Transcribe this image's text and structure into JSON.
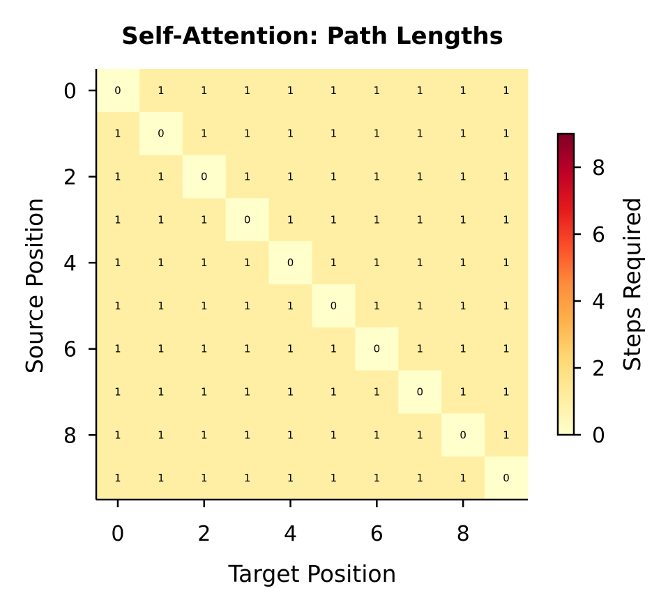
{
  "chart_data": {
    "type": "heatmap",
    "title": "Self-Attention: Path Lengths",
    "xlabel": "Target Position",
    "ylabel": "Source Position",
    "x_ticks": [
      0,
      2,
      4,
      6,
      8
    ],
    "y_ticks": [
      0,
      2,
      4,
      6,
      8
    ],
    "rows": 10,
    "cols": 10,
    "values": [
      [
        0,
        1,
        1,
        1,
        1,
        1,
        1,
        1,
        1,
        1
      ],
      [
        1,
        0,
        1,
        1,
        1,
        1,
        1,
        1,
        1,
        1
      ],
      [
        1,
        1,
        0,
        1,
        1,
        1,
        1,
        1,
        1,
        1
      ],
      [
        1,
        1,
        1,
        0,
        1,
        1,
        1,
        1,
        1,
        1
      ],
      [
        1,
        1,
        1,
        1,
        0,
        1,
        1,
        1,
        1,
        1
      ],
      [
        1,
        1,
        1,
        1,
        1,
        0,
        1,
        1,
        1,
        1
      ],
      [
        1,
        1,
        1,
        1,
        1,
        1,
        0,
        1,
        1,
        1
      ],
      [
        1,
        1,
        1,
        1,
        1,
        1,
        1,
        0,
        1,
        1
      ],
      [
        1,
        1,
        1,
        1,
        1,
        1,
        1,
        1,
        0,
        1
      ],
      [
        1,
        1,
        1,
        1,
        1,
        1,
        1,
        1,
        1,
        0
      ]
    ],
    "colorbar": {
      "label": "Steps Required",
      "range": [
        0,
        9
      ],
      "ticks": [
        0,
        2,
        4,
        6,
        8
      ],
      "colormap": "YlOrRd",
      "colors": [
        "#ffffcc",
        "#ffeda0",
        "#fed976",
        "#feb24c",
        "#fd8d3c",
        "#fc4e2a",
        "#e31a1c",
        "#bd0026",
        "#800026"
      ]
    },
    "grid": false
  }
}
